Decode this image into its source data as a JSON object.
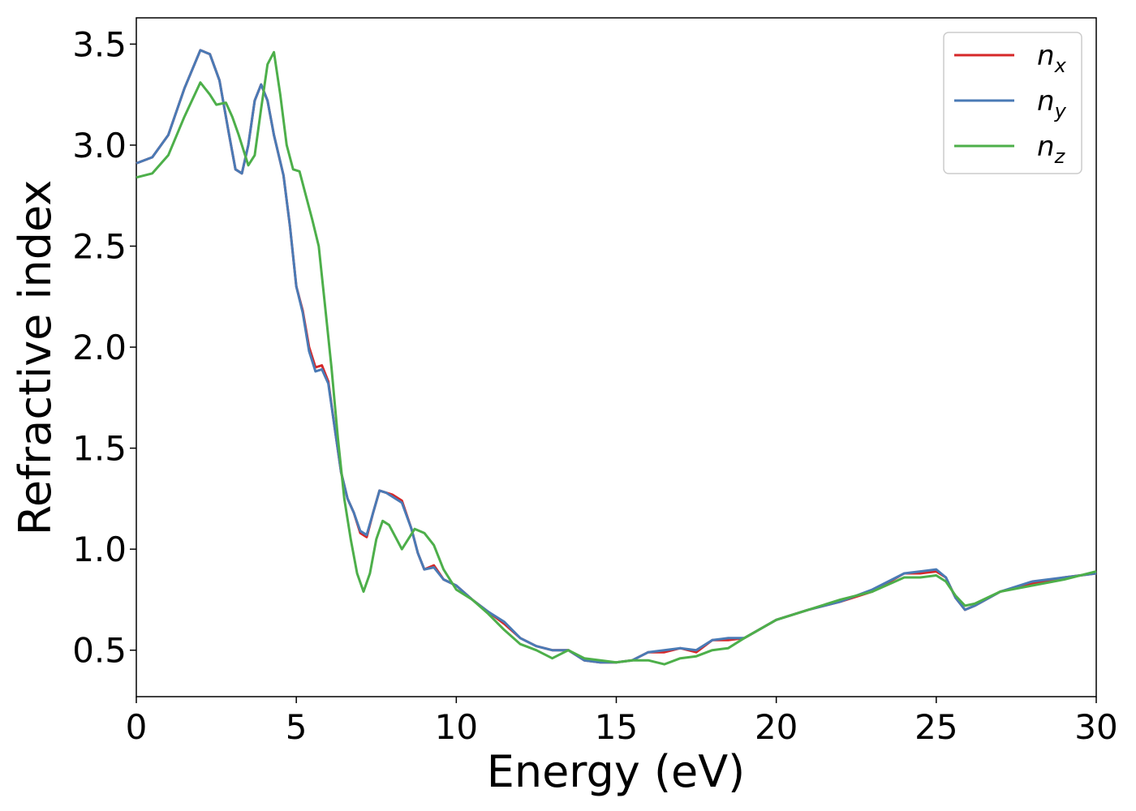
{
  "chart_data": {
    "type": "line",
    "xlabel": "Energy (eV)",
    "ylabel": "Refractive index",
    "xlim": [
      0,
      30
    ],
    "ylim": [
      0.27,
      3.63
    ],
    "xticks": [
      "0",
      "5",
      "10",
      "15",
      "20",
      "25",
      "30"
    ],
    "yticks": [
      "0.5",
      "1.0",
      "1.5",
      "2.0",
      "2.5",
      "3.0",
      "3.5"
    ],
    "grid": false,
    "legend_position": "top-right",
    "series": [
      {
        "name": "n",
        "sub": "x",
        "color": "#d62728",
        "points": [
          [
            0,
            2.91
          ],
          [
            0.5,
            2.94
          ],
          [
            1,
            3.05
          ],
          [
            1.5,
            3.28
          ],
          [
            2.0,
            3.47
          ],
          [
            2.3,
            3.45
          ],
          [
            2.6,
            3.32
          ],
          [
            2.9,
            3.05
          ],
          [
            3.1,
            2.88
          ],
          [
            3.3,
            2.86
          ],
          [
            3.5,
            3.0
          ],
          [
            3.7,
            3.22
          ],
          [
            3.9,
            3.3
          ],
          [
            4.1,
            3.22
          ],
          [
            4.3,
            3.05
          ],
          [
            4.6,
            2.85
          ],
          [
            4.8,
            2.6
          ],
          [
            5.0,
            2.3
          ],
          [
            5.2,
            2.18
          ],
          [
            5.4,
            2.0
          ],
          [
            5.6,
            1.9
          ],
          [
            5.8,
            1.91
          ],
          [
            6.0,
            1.83
          ],
          [
            6.2,
            1.6
          ],
          [
            6.4,
            1.38
          ],
          [
            6.6,
            1.25
          ],
          [
            6.8,
            1.18
          ],
          [
            7.0,
            1.08
          ],
          [
            7.2,
            1.06
          ],
          [
            7.4,
            1.18
          ],
          [
            7.6,
            1.29
          ],
          [
            7.8,
            1.28
          ],
          [
            8.0,
            1.27
          ],
          [
            8.3,
            1.24
          ],
          [
            8.6,
            1.1
          ],
          [
            8.8,
            0.98
          ],
          [
            9.0,
            0.9
          ],
          [
            9.3,
            0.92
          ],
          [
            9.6,
            0.85
          ],
          [
            10,
            0.82
          ],
          [
            10.5,
            0.75
          ],
          [
            11,
            0.69
          ],
          [
            11.5,
            0.63
          ],
          [
            12,
            0.56
          ],
          [
            12.5,
            0.52
          ],
          [
            13,
            0.5
          ],
          [
            13.5,
            0.5
          ],
          [
            14,
            0.45
          ],
          [
            14.5,
            0.44
          ],
          [
            15,
            0.44
          ],
          [
            15.5,
            0.45
          ],
          [
            16,
            0.49
          ],
          [
            16.5,
            0.49
          ],
          [
            17,
            0.51
          ],
          [
            17.5,
            0.49
          ],
          [
            18,
            0.55
          ],
          [
            18.5,
            0.55
          ],
          [
            19,
            0.56
          ],
          [
            20,
            0.65
          ],
          [
            21,
            0.7
          ],
          [
            22,
            0.74
          ],
          [
            23,
            0.79
          ],
          [
            24,
            0.88
          ],
          [
            24.5,
            0.88
          ],
          [
            25,
            0.89
          ],
          [
            25.3,
            0.86
          ],
          [
            25.6,
            0.76
          ],
          [
            25.9,
            0.7
          ],
          [
            26.2,
            0.72
          ],
          [
            27,
            0.79
          ],
          [
            28,
            0.83
          ],
          [
            29,
            0.86
          ],
          [
            30,
            0.88
          ]
        ]
      },
      {
        "name": "n",
        "sub": "y",
        "color": "#4a7ab5",
        "points": [
          [
            0,
            2.91
          ],
          [
            0.5,
            2.94
          ],
          [
            1,
            3.05
          ],
          [
            1.5,
            3.28
          ],
          [
            2.0,
            3.47
          ],
          [
            2.3,
            3.45
          ],
          [
            2.6,
            3.32
          ],
          [
            2.9,
            3.05
          ],
          [
            3.1,
            2.88
          ],
          [
            3.3,
            2.86
          ],
          [
            3.5,
            3.0
          ],
          [
            3.7,
            3.22
          ],
          [
            3.9,
            3.3
          ],
          [
            4.1,
            3.22
          ],
          [
            4.3,
            3.05
          ],
          [
            4.6,
            2.85
          ],
          [
            4.8,
            2.6
          ],
          [
            5.0,
            2.3
          ],
          [
            5.2,
            2.17
          ],
          [
            5.4,
            1.98
          ],
          [
            5.6,
            1.88
          ],
          [
            5.8,
            1.89
          ],
          [
            6.0,
            1.82
          ],
          [
            6.2,
            1.6
          ],
          [
            6.4,
            1.38
          ],
          [
            6.6,
            1.25
          ],
          [
            6.8,
            1.18
          ],
          [
            7.0,
            1.09
          ],
          [
            7.2,
            1.07
          ],
          [
            7.4,
            1.18
          ],
          [
            7.6,
            1.29
          ],
          [
            7.8,
            1.28
          ],
          [
            8.0,
            1.26
          ],
          [
            8.3,
            1.23
          ],
          [
            8.6,
            1.1
          ],
          [
            8.8,
            0.98
          ],
          [
            9.0,
            0.9
          ],
          [
            9.3,
            0.91
          ],
          [
            9.6,
            0.85
          ],
          [
            10,
            0.82
          ],
          [
            10.5,
            0.75
          ],
          [
            11,
            0.69
          ],
          [
            11.5,
            0.64
          ],
          [
            12,
            0.56
          ],
          [
            12.5,
            0.52
          ],
          [
            13,
            0.5
          ],
          [
            13.5,
            0.5
          ],
          [
            14,
            0.45
          ],
          [
            14.5,
            0.44
          ],
          [
            15,
            0.44
          ],
          [
            15.5,
            0.45
          ],
          [
            16,
            0.49
          ],
          [
            16.5,
            0.5
          ],
          [
            17,
            0.51
          ],
          [
            17.5,
            0.5
          ],
          [
            18,
            0.55
          ],
          [
            18.5,
            0.56
          ],
          [
            19,
            0.56
          ],
          [
            20,
            0.65
          ],
          [
            21,
            0.7
          ],
          [
            22,
            0.74
          ],
          [
            23,
            0.8
          ],
          [
            24,
            0.88
          ],
          [
            24.5,
            0.89
          ],
          [
            25,
            0.9
          ],
          [
            25.3,
            0.86
          ],
          [
            25.6,
            0.76
          ],
          [
            25.9,
            0.7
          ],
          [
            26.2,
            0.72
          ],
          [
            27,
            0.79
          ],
          [
            28,
            0.84
          ],
          [
            29,
            0.86
          ],
          [
            30,
            0.88
          ]
        ]
      },
      {
        "name": "n",
        "sub": "z",
        "color": "#4daf4a",
        "points": [
          [
            0,
            2.84
          ],
          [
            0.5,
            2.86
          ],
          [
            1,
            2.95
          ],
          [
            1.5,
            3.14
          ],
          [
            2.0,
            3.31
          ],
          [
            2.3,
            3.25
          ],
          [
            2.5,
            3.2
          ],
          [
            2.8,
            3.21
          ],
          [
            3.0,
            3.14
          ],
          [
            3.2,
            3.05
          ],
          [
            3.5,
            2.9
          ],
          [
            3.7,
            2.95
          ],
          [
            3.9,
            3.18
          ],
          [
            4.1,
            3.4
          ],
          [
            4.3,
            3.46
          ],
          [
            4.5,
            3.25
          ],
          [
            4.7,
            3.0
          ],
          [
            4.9,
            2.88
          ],
          [
            5.1,
            2.87
          ],
          [
            5.3,
            2.75
          ],
          [
            5.5,
            2.63
          ],
          [
            5.7,
            2.5
          ],
          [
            5.9,
            2.2
          ],
          [
            6.1,
            1.9
          ],
          [
            6.3,
            1.55
          ],
          [
            6.5,
            1.25
          ],
          [
            6.7,
            1.05
          ],
          [
            6.9,
            0.88
          ],
          [
            7.1,
            0.79
          ],
          [
            7.3,
            0.88
          ],
          [
            7.5,
            1.05
          ],
          [
            7.7,
            1.14
          ],
          [
            7.9,
            1.12
          ],
          [
            8.1,
            1.06
          ],
          [
            8.3,
            1.0
          ],
          [
            8.5,
            1.05
          ],
          [
            8.7,
            1.1
          ],
          [
            9.0,
            1.08
          ],
          [
            9.3,
            1.02
          ],
          [
            9.6,
            0.9
          ],
          [
            10,
            0.8
          ],
          [
            10.5,
            0.75
          ],
          [
            11,
            0.68
          ],
          [
            11.5,
            0.6
          ],
          [
            12,
            0.53
          ],
          [
            12.5,
            0.5
          ],
          [
            13,
            0.46
          ],
          [
            13.5,
            0.5
          ],
          [
            14,
            0.46
          ],
          [
            14.5,
            0.45
          ],
          [
            15,
            0.44
          ],
          [
            15.5,
            0.45
          ],
          [
            16,
            0.45
          ],
          [
            16.5,
            0.43
          ],
          [
            17,
            0.46
          ],
          [
            17.5,
            0.47
          ],
          [
            18,
            0.5
          ],
          [
            18.5,
            0.51
          ],
          [
            19,
            0.56
          ],
          [
            20,
            0.65
          ],
          [
            21,
            0.7
          ],
          [
            22,
            0.75
          ],
          [
            23,
            0.79
          ],
          [
            24,
            0.86
          ],
          [
            24.5,
            0.86
          ],
          [
            25,
            0.87
          ],
          [
            25.3,
            0.84
          ],
          [
            25.6,
            0.77
          ],
          [
            25.9,
            0.72
          ],
          [
            26.2,
            0.73
          ],
          [
            27,
            0.79
          ],
          [
            28,
            0.82
          ],
          [
            29,
            0.85
          ],
          [
            30,
            0.89
          ]
        ]
      }
    ]
  }
}
